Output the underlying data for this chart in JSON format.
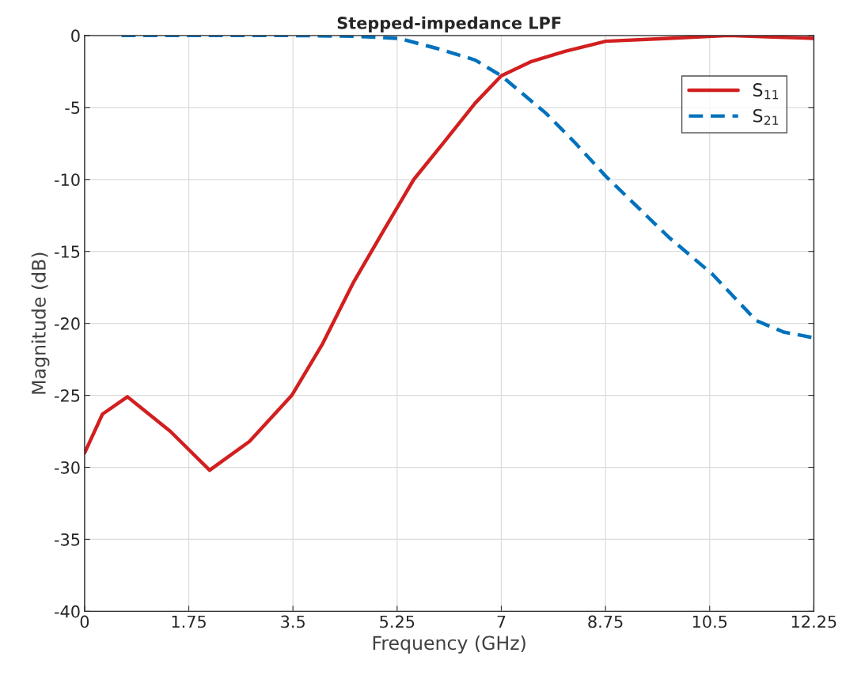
{
  "chart_data": {
    "type": "line",
    "title": "Stepped-impedance LPF",
    "xlabel": "Frequency (GHz)",
    "ylabel": "Magnitude (dB)",
    "xlim": [
      0,
      12.25
    ],
    "ylim": [
      -40,
      0
    ],
    "xticks": [
      0,
      1.75,
      3.5,
      5.25,
      7,
      8.75,
      10.5,
      12.25
    ],
    "yticks": [
      -40,
      -35,
      -30,
      -25,
      -20,
      -15,
      -10,
      -5,
      0
    ],
    "grid": true,
    "legend": "top right",
    "series": [
      {
        "name": "S$_{11}$",
        "color": "#d21f1f",
        "line_style": "solid",
        "x": [
          0,
          0.3,
          0.72,
          1.44,
          2.1,
          2.77,
          3.48,
          4.0,
          4.51,
          5.03,
          5.53,
          6.04,
          6.56,
          7.0,
          7.51,
          8.07,
          8.75,
          9.81,
          10.82,
          11.56,
          12.25
        ],
        "values": [
          -29.0,
          -26.3,
          -25.1,
          -27.5,
          -30.2,
          -28.2,
          -25.0,
          -21.4,
          -17.2,
          -13.5,
          -10.0,
          -7.4,
          -4.7,
          -2.8,
          -1.8,
          -1.1,
          -0.4,
          -0.2,
          0.0,
          -0.1,
          -0.2
        ]
      },
      {
        "name": "S$_{21}$",
        "color": "#0072bd",
        "line_style": "dashed",
        "x": [
          0.62,
          2.0,
          3.5,
          4.5,
          5.28,
          5.92,
          6.56,
          7.0,
          7.75,
          8.25,
          8.76,
          9.81,
          10.55,
          11.28,
          11.74,
          12.25
        ],
        "values": [
          0.0,
          0.0,
          0.0,
          -0.05,
          -0.2,
          -0.9,
          -1.7,
          -2.8,
          -5.4,
          -7.5,
          -9.8,
          -14.0,
          -16.6,
          -19.8,
          -20.6,
          -21.0
        ]
      }
    ]
  }
}
